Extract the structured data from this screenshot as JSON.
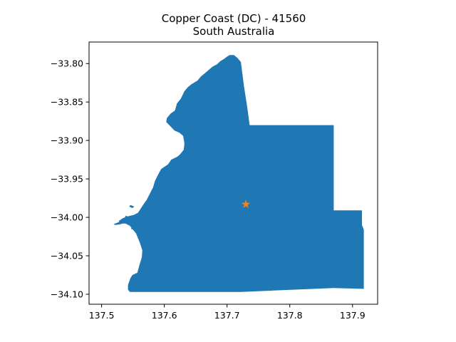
{
  "title": {
    "line1": "Copper Coast (DC) - 41560",
    "line2": "South Australia"
  },
  "map": {
    "fill_color": "#1f77b4",
    "marker_color": "#ff7f0e",
    "marker_icon": "star-marker",
    "marker_location": {
      "lon": 137.73,
      "lat": -33.983
    },
    "x_range": [
      137.48,
      137.94
    ],
    "y_range": [
      -34.113,
      -33.772
    ],
    "x_ticks": [
      {
        "value": 137.5,
        "label": "137.5"
      },
      {
        "value": 137.6,
        "label": "137.6"
      },
      {
        "value": 137.7,
        "label": "137.7"
      },
      {
        "value": 137.8,
        "label": "137.8"
      },
      {
        "value": 137.9,
        "label": "137.9"
      }
    ],
    "y_ticks": [
      {
        "value": -33.8,
        "label": "−33.80"
      },
      {
        "value": -33.85,
        "label": "−33.85"
      },
      {
        "value": -33.9,
        "label": "−33.90"
      },
      {
        "value": -33.95,
        "label": "−33.95"
      },
      {
        "value": -34.0,
        "label": "−34.00"
      },
      {
        "value": -34.05,
        "label": "−34.05"
      },
      {
        "value": -34.1,
        "label": "−34.10"
      }
    ],
    "boundary": [
      [
        137.711,
        -33.789
      ],
      [
        137.717,
        -33.793
      ],
      [
        137.722,
        -33.798
      ],
      [
        137.727,
        -33.83
      ],
      [
        137.732,
        -33.856
      ],
      [
        137.736,
        -33.88
      ],
      [
        137.87,
        -33.88
      ],
      [
        137.87,
        -33.991
      ],
      [
        137.915,
        -33.991
      ],
      [
        137.915,
        -34.01
      ],
      [
        137.918,
        -34.016
      ],
      [
        137.918,
        -34.093
      ],
      [
        137.87,
        -34.092
      ],
      [
        137.722,
        -34.097
      ],
      [
        137.56,
        -34.097
      ],
      [
        137.545,
        -34.097
      ],
      [
        137.542,
        -34.094
      ],
      [
        137.542,
        -34.088
      ],
      [
        137.546,
        -34.079
      ],
      [
        137.549,
        -34.075
      ],
      [
        137.557,
        -34.072
      ],
      [
        137.56,
        -34.063
      ],
      [
        137.564,
        -34.052
      ],
      [
        137.565,
        -34.043
      ],
      [
        137.561,
        -34.033
      ],
      [
        137.555,
        -34.021
      ],
      [
        137.545,
        -34.011
      ],
      [
        137.538,
        -34.008
      ],
      [
        137.532,
        -34.008
      ],
      [
        137.527,
        -34.005
      ],
      [
        137.534,
        -34.001
      ],
      [
        137.545,
        -33.998
      ],
      [
        137.551,
        -33.997
      ],
      [
        137.558,
        -33.994
      ],
      [
        137.566,
        -33.984
      ],
      [
        137.572,
        -33.977
      ],
      [
        137.582,
        -33.961
      ],
      [
        137.585,
        -33.953
      ],
      [
        137.589,
        -33.946
      ],
      [
        137.595,
        -33.937
      ],
      [
        137.606,
        -33.931
      ],
      [
        137.611,
        -33.925
      ],
      [
        137.621,
        -33.921
      ],
      [
        137.625,
        -33.918
      ],
      [
        137.631,
        -33.912
      ],
      [
        137.632,
        -33.904
      ],
      [
        137.63,
        -33.894
      ],
      [
        137.624,
        -33.89
      ],
      [
        137.616,
        -33.887
      ],
      [
        137.609,
        -33.881
      ],
      [
        137.603,
        -33.876
      ],
      [
        137.604,
        -33.871
      ],
      [
        137.61,
        -33.865
      ],
      [
        137.617,
        -33.861
      ],
      [
        137.62,
        -33.852
      ],
      [
        137.626,
        -33.846
      ],
      [
        137.632,
        -33.836
      ],
      [
        137.637,
        -33.831
      ],
      [
        137.643,
        -33.827
      ],
      [
        137.653,
        -33.822
      ],
      [
        137.658,
        -33.817
      ],
      [
        137.664,
        -33.813
      ],
      [
        137.671,
        -33.808
      ],
      [
        137.677,
        -33.804
      ],
      [
        137.684,
        -33.801
      ],
      [
        137.689,
        -33.797
      ],
      [
        137.695,
        -33.794
      ],
      [
        137.7,
        -33.791
      ],
      [
        137.704,
        -33.789
      ]
    ],
    "islands": [
      [
        [
          137.519,
          -34.009
        ],
        [
          137.528,
          -34.006
        ],
        [
          137.536,
          -34.004
        ],
        [
          137.537,
          -34.007
        ],
        [
          137.53,
          -34.009
        ],
        [
          137.522,
          -34.01
        ]
      ],
      [
        [
          137.546,
          -33.984
        ],
        [
          137.552,
          -33.986
        ],
        [
          137.549,
          -33.988
        ],
        [
          137.544,
          -33.986
        ]
      ],
      [
        [
          137.538,
          -33.998
        ],
        [
          137.543,
          -33.999
        ],
        [
          137.541,
          -34.002
        ],
        [
          137.537,
          -34.001
        ]
      ],
      [
        [
          137.548,
          -34.012
        ],
        [
          137.551,
          -34.013
        ],
        [
          137.55,
          -34.016
        ],
        [
          137.547,
          -34.015
        ]
      ]
    ]
  }
}
